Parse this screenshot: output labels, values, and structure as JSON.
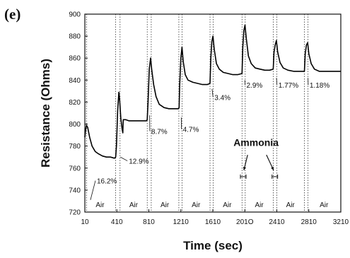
{
  "panel_label": "(e)",
  "chart_data": {
    "type": "line",
    "title": "",
    "xlabel": "Time (sec)",
    "ylabel": "Resistance (Ohms)",
    "xlim": [
      10,
      3210
    ],
    "ylim": [
      720,
      900
    ],
    "x_ticks": [
      10,
      410,
      810,
      1210,
      1610,
      2010,
      2410,
      2810,
      3210
    ],
    "x_tick_labels": [
      "10",
      "410",
      "810",
      "1210",
      "1610",
      "201O",
      "2410",
      "2810",
      "3210"
    ],
    "y_ticks": [
      720,
      740,
      760,
      780,
      800,
      820,
      840,
      860,
      880,
      900
    ],
    "y_tick_labels": [
      "720",
      "740",
      "760",
      "780",
      "800",
      "820",
      "840",
      "860",
      "880",
      "900"
    ],
    "grid": false,
    "exposure_windows": [
      {
        "start": 10,
        "end": 30
      },
      {
        "start": 395,
        "end": 450
      },
      {
        "start": 790,
        "end": 840
      },
      {
        "start": 1185,
        "end": 1225
      },
      {
        "start": 1575,
        "end": 1615
      },
      {
        "start": 1975,
        "end": 2015
      },
      {
        "start": 2365,
        "end": 2410
      },
      {
        "start": 2755,
        "end": 2800
      }
    ],
    "series": [
      {
        "values": [
          [
            10,
            788
          ],
          [
            20,
            795
          ],
          [
            30,
            799
          ],
          [
            45,
            797
          ],
          [
            70,
            788
          ],
          [
            100,
            780
          ],
          [
            140,
            775
          ],
          [
            180,
            773
          ],
          [
            230,
            771
          ],
          [
            280,
            770
          ],
          [
            330,
            770
          ],
          [
            380,
            769
          ],
          [
            395,
            770
          ],
          [
            405,
            780
          ],
          [
            420,
            812
          ],
          [
            435,
            829
          ],
          [
            445,
            822
          ],
          [
            460,
            805
          ],
          [
            475,
            796
          ],
          [
            485,
            792
          ],
          [
            490,
            804
          ],
          [
            520,
            804
          ],
          [
            560,
            803
          ],
          [
            620,
            803
          ],
          [
            700,
            803
          ],
          [
            780,
            803
          ],
          [
            790,
            804
          ],
          [
            800,
            820
          ],
          [
            815,
            850
          ],
          [
            832,
            860
          ],
          [
            845,
            850
          ],
          [
            870,
            836
          ],
          [
            900,
            825
          ],
          [
            940,
            818
          ],
          [
            1000,
            815
          ],
          [
            1060,
            814
          ],
          [
            1120,
            814
          ],
          [
            1180,
            814
          ],
          [
            1188,
            815
          ],
          [
            1195,
            835
          ],
          [
            1210,
            860
          ],
          [
            1225,
            870
          ],
          [
            1240,
            857
          ],
          [
            1265,
            845
          ],
          [
            1300,
            840
          ],
          [
            1360,
            838
          ],
          [
            1420,
            837
          ],
          [
            1480,
            836
          ],
          [
            1540,
            836
          ],
          [
            1575,
            837
          ],
          [
            1585,
            860
          ],
          [
            1598,
            875
          ],
          [
            1612,
            880
          ],
          [
            1628,
            868
          ],
          [
            1655,
            855
          ],
          [
            1690,
            850
          ],
          [
            1740,
            847
          ],
          [
            1800,
            846
          ],
          [
            1860,
            845
          ],
          [
            1920,
            845
          ],
          [
            1975,
            846
          ],
          [
            1985,
            870
          ],
          [
            1998,
            885
          ],
          [
            2012,
            890
          ],
          [
            2028,
            878
          ],
          [
            2055,
            862
          ],
          [
            2090,
            855
          ],
          [
            2140,
            851
          ],
          [
            2200,
            850
          ],
          [
            2260,
            849
          ],
          [
            2320,
            849
          ],
          [
            2365,
            850
          ],
          [
            2375,
            865
          ],
          [
            2390,
            872
          ],
          [
            2405,
            876
          ],
          [
            2420,
            866
          ],
          [
            2450,
            856
          ],
          [
            2490,
            851
          ],
          [
            2550,
            849
          ],
          [
            2620,
            848
          ],
          [
            2700,
            848
          ],
          [
            2755,
            848
          ],
          [
            2765,
            864
          ],
          [
            2780,
            872
          ],
          [
            2795,
            874
          ],
          [
            2810,
            864
          ],
          [
            2840,
            855
          ],
          [
            2880,
            850
          ],
          [
            2940,
            848
          ],
          [
            3020,
            848
          ],
          [
            3100,
            848
          ],
          [
            3180,
            848
          ],
          [
            3210,
            848
          ]
        ]
      }
    ],
    "annotations": [
      {
        "text": "16.2%",
        "x": 160,
        "y": 746,
        "arrow_to": [
          80,
          731
        ]
      },
      {
        "text": "12.9%",
        "x": 560,
        "y": 764,
        "arrow_to": [
          455,
          770
        ]
      },
      {
        "text": "8.7%",
        "x": 840,
        "y": 791,
        "arrow_to": [
          820,
          808
        ]
      },
      {
        "text": "4.7%",
        "x": 1235,
        "y": 793,
        "arrow_to": [
          1215,
          806
        ]
      },
      {
        "text": "3.4%",
        "x": 1630,
        "y": 822,
        "arrow_to": [
          1600,
          832
        ]
      },
      {
        "text": "2.9%",
        "x": 2030,
        "y": 833,
        "arrow_to": [
          2010,
          840
        ]
      },
      {
        "text": "1.77%",
        "x": 2430,
        "y": 833,
        "arrow_to": [
          2405,
          842
        ]
      },
      {
        "text": "1.18%",
        "x": 2820,
        "y": 833,
        "arrow_to": [
          2800,
          842
        ]
      }
    ],
    "region_labels": [
      {
        "text": "Air",
        "x": 200
      },
      {
        "text": "Air",
        "x": 620
      },
      {
        "text": "Air",
        "x": 1010
      },
      {
        "text": "Air",
        "x": 1400
      },
      {
        "text": "Air",
        "x": 1790
      },
      {
        "text": "Air",
        "x": 2190
      },
      {
        "text": "Air",
        "x": 2580
      },
      {
        "text": "Air",
        "x": 3000
      }
    ],
    "ammonia_label": {
      "text": "Ammonia",
      "x": 2150,
      "y": 780,
      "markers": [
        {
          "x": 1990,
          "arrow_from": [
            2045,
            772
          ],
          "arrow_to": [
            1998,
            758
          ]
        },
        {
          "x": 2385,
          "arrow_from": [
            2280,
            772
          ],
          "arrow_to": [
            2370,
            758
          ]
        }
      ]
    }
  }
}
